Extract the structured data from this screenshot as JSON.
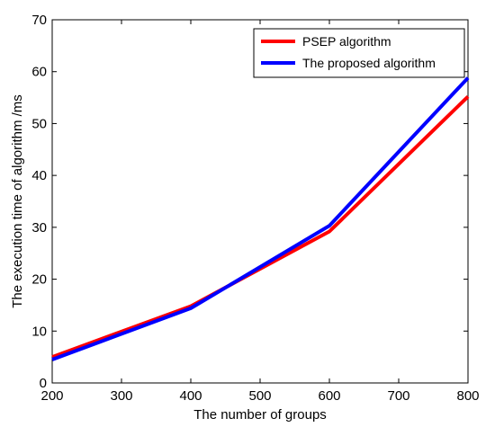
{
  "chart_data": {
    "type": "line",
    "title": "",
    "xlabel": "The number of groups",
    "ylabel": "The execution time of algorithm /ms",
    "xlim": [
      200,
      800
    ],
    "ylim": [
      0,
      70
    ],
    "xticks": [
      200,
      300,
      400,
      500,
      600,
      700,
      800
    ],
    "yticks": [
      0,
      10,
      20,
      30,
      40,
      50,
      60,
      70
    ],
    "grid": false,
    "legend_position": "top-right",
    "x": [
      200,
      400,
      600,
      800
    ],
    "series": [
      {
        "name": "PSEP algorithm",
        "color": "#ff0000",
        "values": [
          5.0,
          14.8,
          29.2,
          55.2
        ]
      },
      {
        "name": "The proposed algorithm",
        "color": "#0000ff",
        "values": [
          4.5,
          14.4,
          30.3,
          58.8
        ]
      }
    ]
  }
}
